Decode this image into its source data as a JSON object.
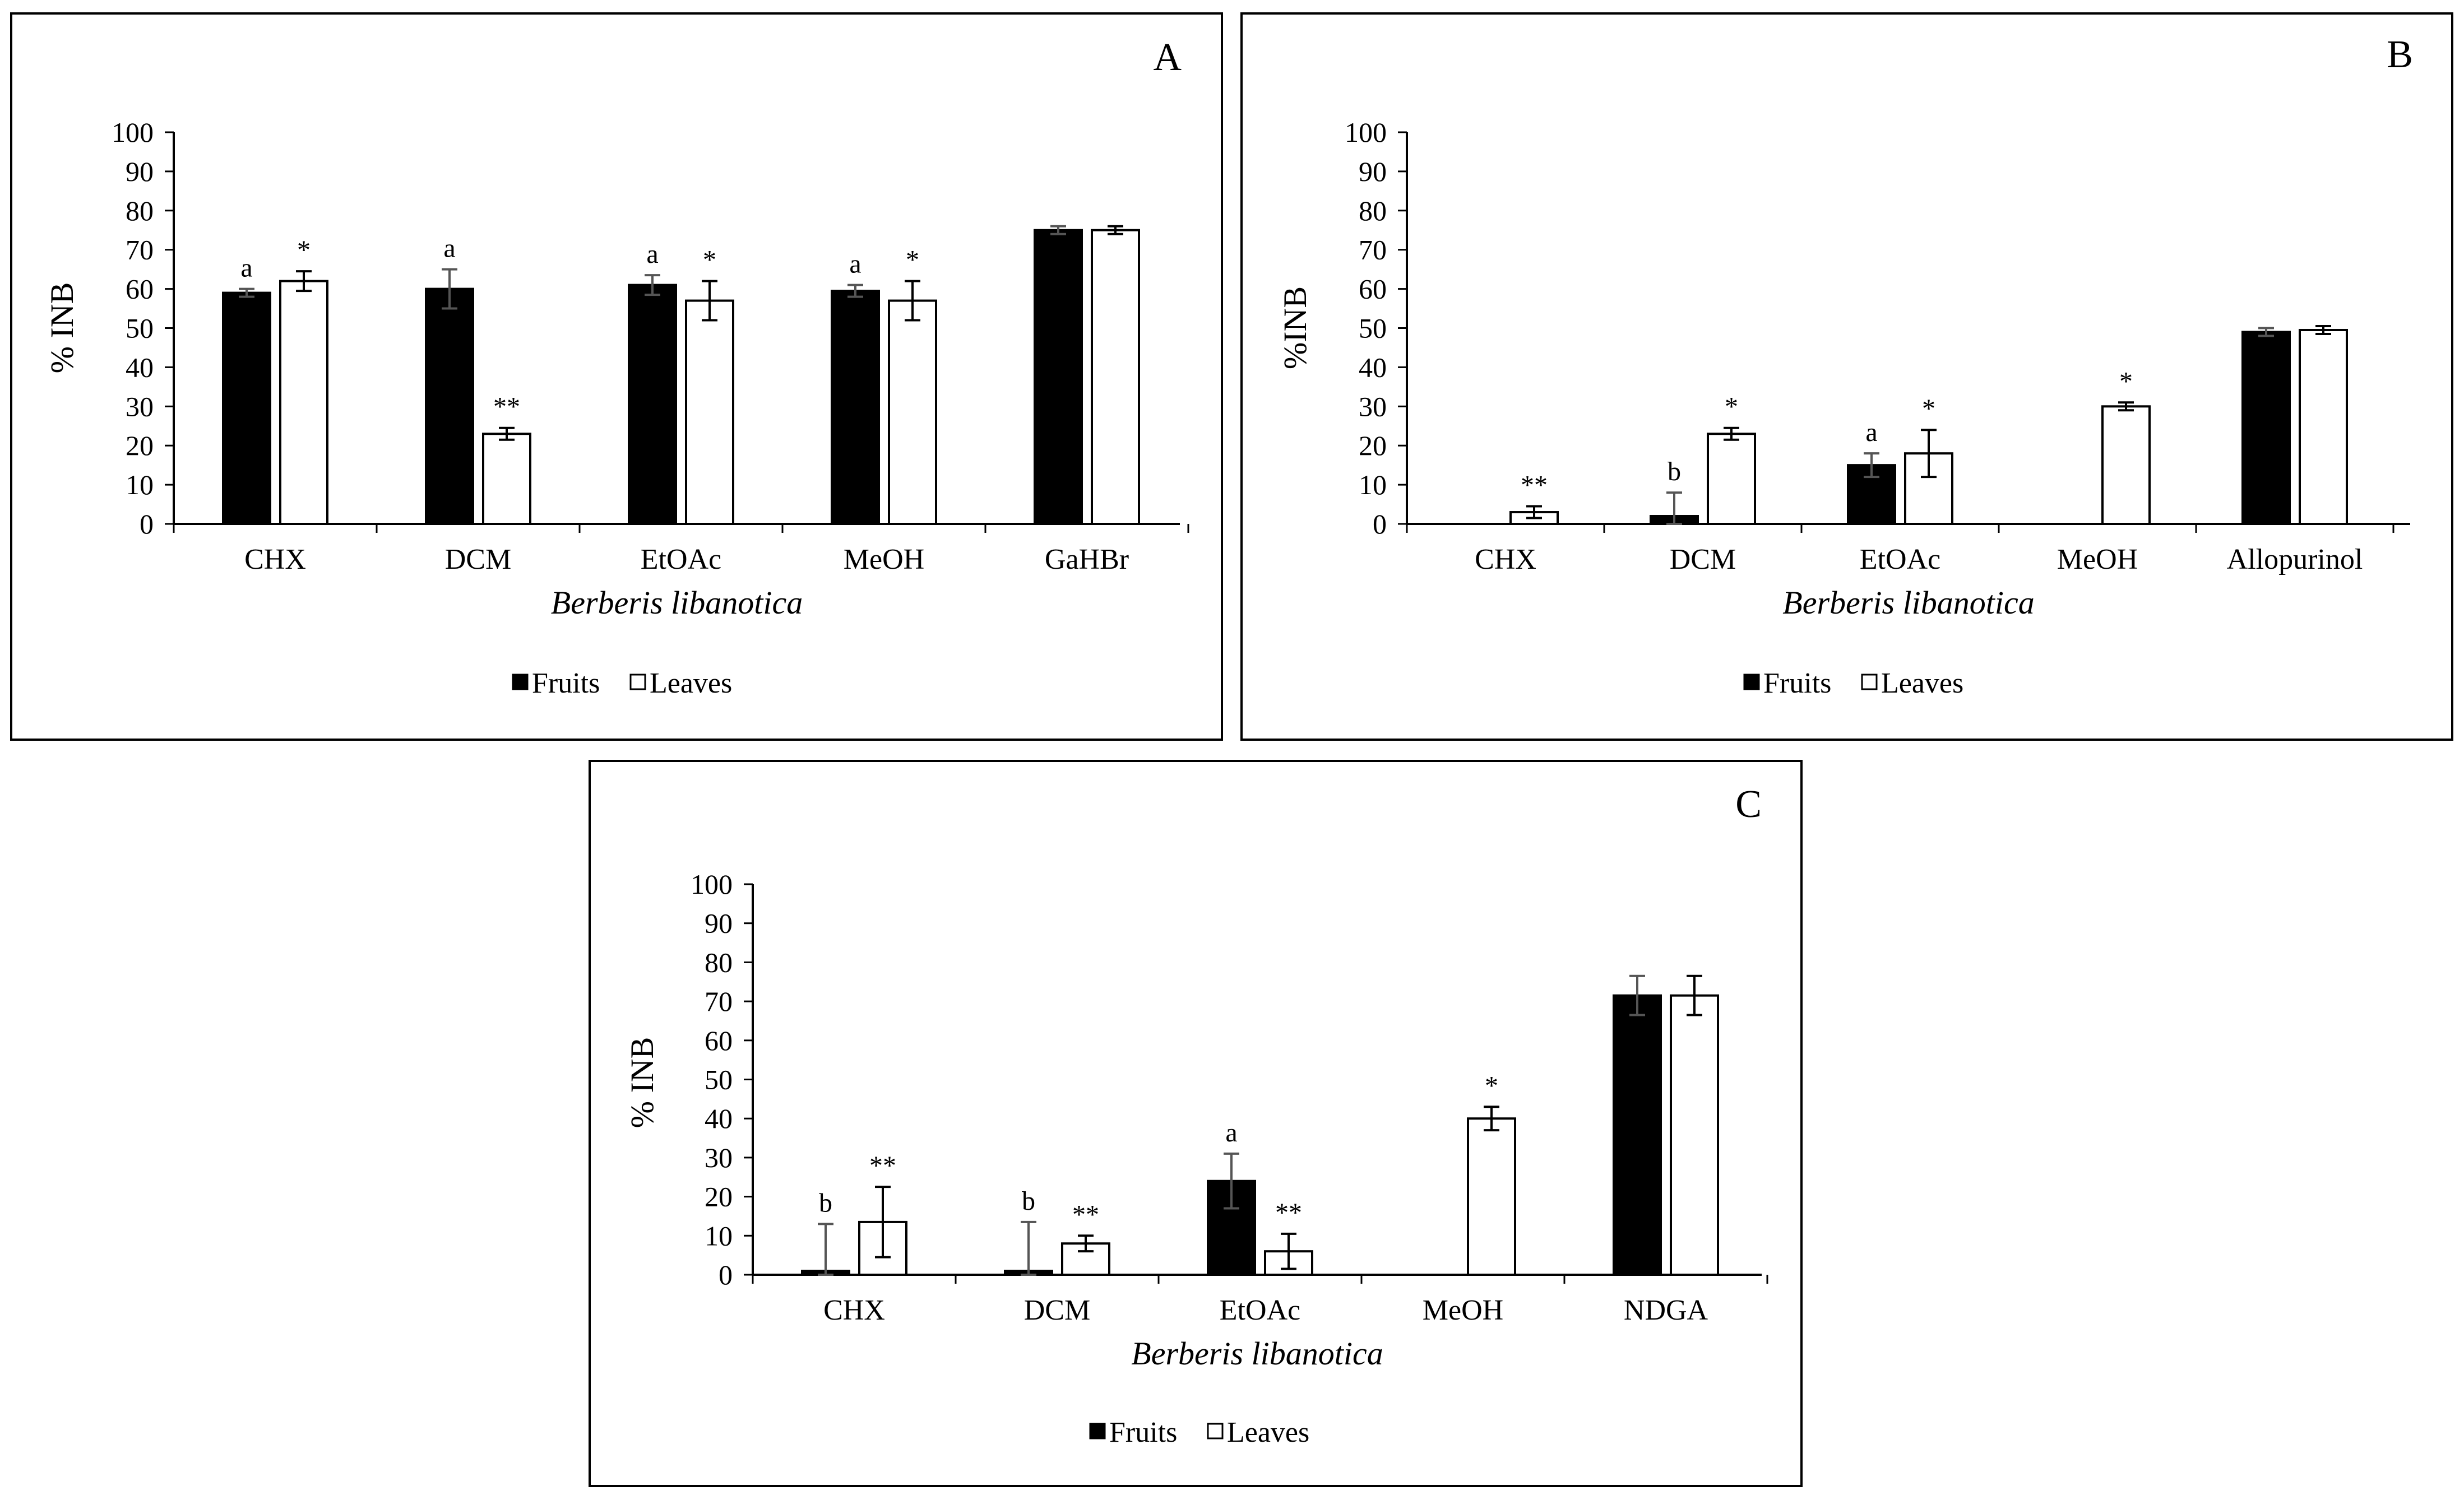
{
  "chart_data": [
    {
      "type": "bar",
      "panel": "A",
      "ylabel": "% INB",
      "xlabel": "Berberis libanotica",
      "ylim": [
        0,
        100
      ],
      "yticks": [
        0,
        10,
        20,
        30,
        40,
        50,
        60,
        70,
        80,
        90,
        100
      ],
      "categories": [
        "CHX",
        "DCM",
        "EtOAc",
        "MeOH",
        "GaHBr"
      ],
      "legend": [
        "Fruits",
        "Leaves"
      ],
      "series": [
        {
          "name": "Fruits",
          "color": "#000000",
          "values": [
            59,
            60,
            61,
            59.5,
            75
          ],
          "errors": [
            1,
            5,
            2.5,
            1.5,
            1
          ],
          "labels": [
            "a",
            "a",
            "a",
            "a",
            ""
          ]
        },
        {
          "name": "Leaves",
          "color": "#ffffff",
          "values": [
            62,
            23,
            57,
            57,
            75
          ],
          "errors": [
            2.5,
            1.5,
            5,
            5,
            1
          ],
          "labels": [
            "*",
            "**",
            "*",
            "*",
            ""
          ]
        }
      ]
    },
    {
      "type": "bar",
      "panel": "B",
      "ylabel": "%INB",
      "xlabel": "Berberis libanotica",
      "ylim": [
        0,
        100
      ],
      "yticks": [
        0,
        10,
        20,
        30,
        40,
        50,
        60,
        70,
        80,
        90,
        100
      ],
      "categories": [
        "CHX",
        "DCM",
        "EtOAc",
        "MeOH",
        "Allopurinol"
      ],
      "legend": [
        "Fruits",
        "Leaves"
      ],
      "series": [
        {
          "name": "Fruits",
          "color": "#000000",
          "values": [
            0,
            2,
            15,
            0,
            49
          ],
          "errors": [
            0,
            6,
            3,
            0,
            1
          ],
          "labels": [
            "",
            "b",
            "a",
            "",
            ""
          ]
        },
        {
          "name": "Leaves",
          "color": "#ffffff",
          "values": [
            3,
            23,
            18,
            30,
            49.5
          ],
          "errors": [
            1.5,
            1.5,
            6,
            1,
            1
          ],
          "labels": [
            "**",
            "*",
            "*",
            "*",
            ""
          ]
        }
      ]
    },
    {
      "type": "bar",
      "panel": "C",
      "ylabel": "% INB",
      "xlabel": "Berberis libanotica",
      "ylim": [
        0,
        100
      ],
      "yticks": [
        0,
        10,
        20,
        30,
        40,
        50,
        60,
        70,
        80,
        90,
        100
      ],
      "categories": [
        "CHX",
        "DCM",
        "EtOAc",
        "MeOH",
        "NDGA"
      ],
      "legend": [
        "Fruits",
        "Leaves"
      ],
      "series": [
        {
          "name": "Fruits",
          "color": "#000000",
          "values": [
            1,
            1,
            24,
            0,
            71.5
          ],
          "errors": [
            12,
            12.5,
            7,
            0,
            5
          ],
          "labels": [
            "b",
            "b",
            "a",
            "",
            ""
          ]
        },
        {
          "name": "Leaves",
          "color": "#ffffff",
          "values": [
            13.5,
            8,
            6,
            40,
            71.5
          ],
          "errors": [
            9,
            2,
            4.5,
            3,
            5
          ],
          "labels": [
            "**",
            "**",
            "**",
            "*",
            ""
          ]
        }
      ]
    }
  ]
}
